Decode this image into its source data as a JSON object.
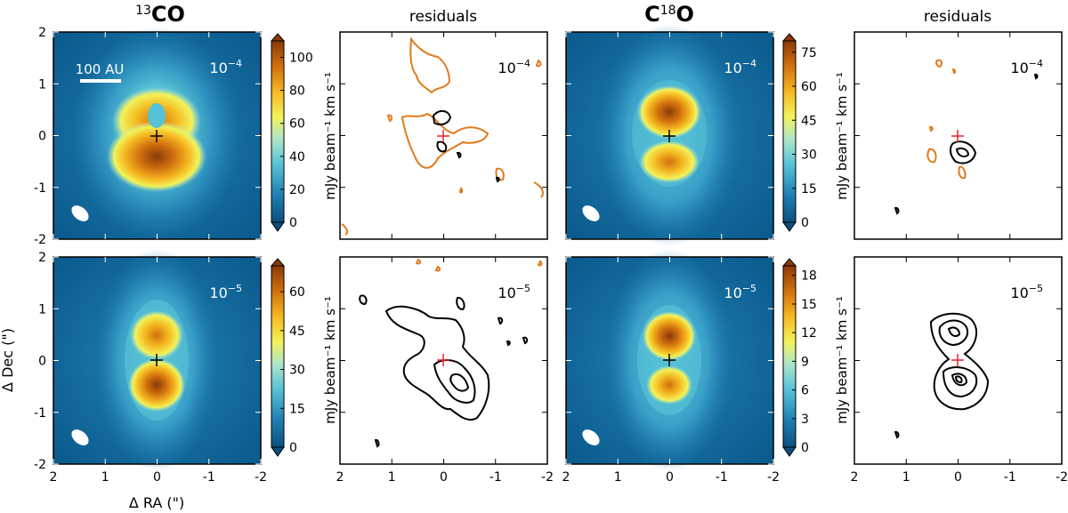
{
  "figure": {
    "colors": {
      "cmap": [
        "#0b4f80",
        "#1f7fb3",
        "#57c2d6",
        "#aee6c8",
        "#f2f25a",
        "#f5b820",
        "#d1700e",
        "#8a3a08"
      ],
      "residual_positive": "#000000",
      "residual_negative": "#e07a1c",
      "star_marker_map": "#000000",
      "star_marker_residual": "#e8202a",
      "beam": "#ffffff"
    },
    "titles": {
      "co13_sup": "13",
      "co13_main": "CO",
      "c18o_main_a": "C",
      "c18o_sup": "18",
      "c18o_main_b": "O",
      "residuals": "residuals"
    },
    "axes": {
      "xlabel": "Δ RA (\")",
      "ylabel": "Δ Dec (\")",
      "xticks": [
        "2",
        "1",
        "0",
        "-1",
        "-2"
      ],
      "yticks": [
        "2",
        "1",
        "0",
        "-1",
        "-2"
      ],
      "cbar_label": "mJy beam⁻¹ km s⁻¹"
    },
    "scalebar_label": "100 AU",
    "panels": [
      {
        "id": "co13-top",
        "tag": "10",
        "exp": "−4",
        "colorbar": [
          0,
          20,
          40,
          60,
          80,
          100
        ],
        "cbar_max": 110,
        "cbar_ticks": [
          "0",
          "20",
          "40",
          "60",
          "80",
          "100"
        ]
      },
      {
        "id": "c18o-top",
        "tag": "10",
        "exp": "−4",
        "colorbar": [
          0,
          15,
          30,
          45,
          60,
          75
        ],
        "cbar_max": 80,
        "cbar_ticks": [
          "0",
          "15",
          "30",
          "45",
          "60",
          "75"
        ]
      },
      {
        "id": "co13-bot",
        "tag": "10",
        "exp": "−5",
        "colorbar": [
          0,
          15,
          30,
          45,
          60
        ],
        "cbar_max": 70,
        "cbar_ticks": [
          "0",
          "15",
          "30",
          "45",
          "60"
        ]
      },
      {
        "id": "c18o-bot",
        "tag": "10",
        "exp": "−5",
        "colorbar": [
          0,
          3,
          6,
          9,
          12,
          15,
          18
        ],
        "cbar_max": 19,
        "cbar_ticks": [
          "0",
          "3",
          "6",
          "9",
          "12",
          "15",
          "18"
        ]
      }
    ]
  },
  "chart_data": {
    "type": "heatmap",
    "description_units": "integrated intensity maps with residual contours",
    "xlim": [
      2,
      -2
    ],
    "ylim": [
      -2,
      2
    ],
    "panels": [
      {
        "row": 1,
        "molecule": "13CO",
        "abundance_label": "10^-4",
        "colorbar_range": [
          0,
          110
        ]
      },
      {
        "row": 1,
        "molecule": "13CO",
        "kind": "residuals",
        "abundance_label": "10^-4"
      },
      {
        "row": 1,
        "molecule": "C18O",
        "abundance_label": "10^-4",
        "colorbar_range": [
          0,
          80
        ]
      },
      {
        "row": 1,
        "molecule": "C18O",
        "kind": "residuals",
        "abundance_label": "10^-4"
      },
      {
        "row": 2,
        "molecule": "13CO",
        "abundance_label": "10^-5",
        "colorbar_range": [
          0,
          70
        ]
      },
      {
        "row": 2,
        "molecule": "13CO",
        "kind": "residuals",
        "abundance_label": "10^-5"
      },
      {
        "row": 2,
        "molecule": "C18O",
        "abundance_label": "10^-5",
        "colorbar_range": [
          0,
          19
        ]
      },
      {
        "row": 2,
        "molecule": "C18O",
        "kind": "residuals",
        "abundance_label": "10^-5"
      }
    ]
  }
}
